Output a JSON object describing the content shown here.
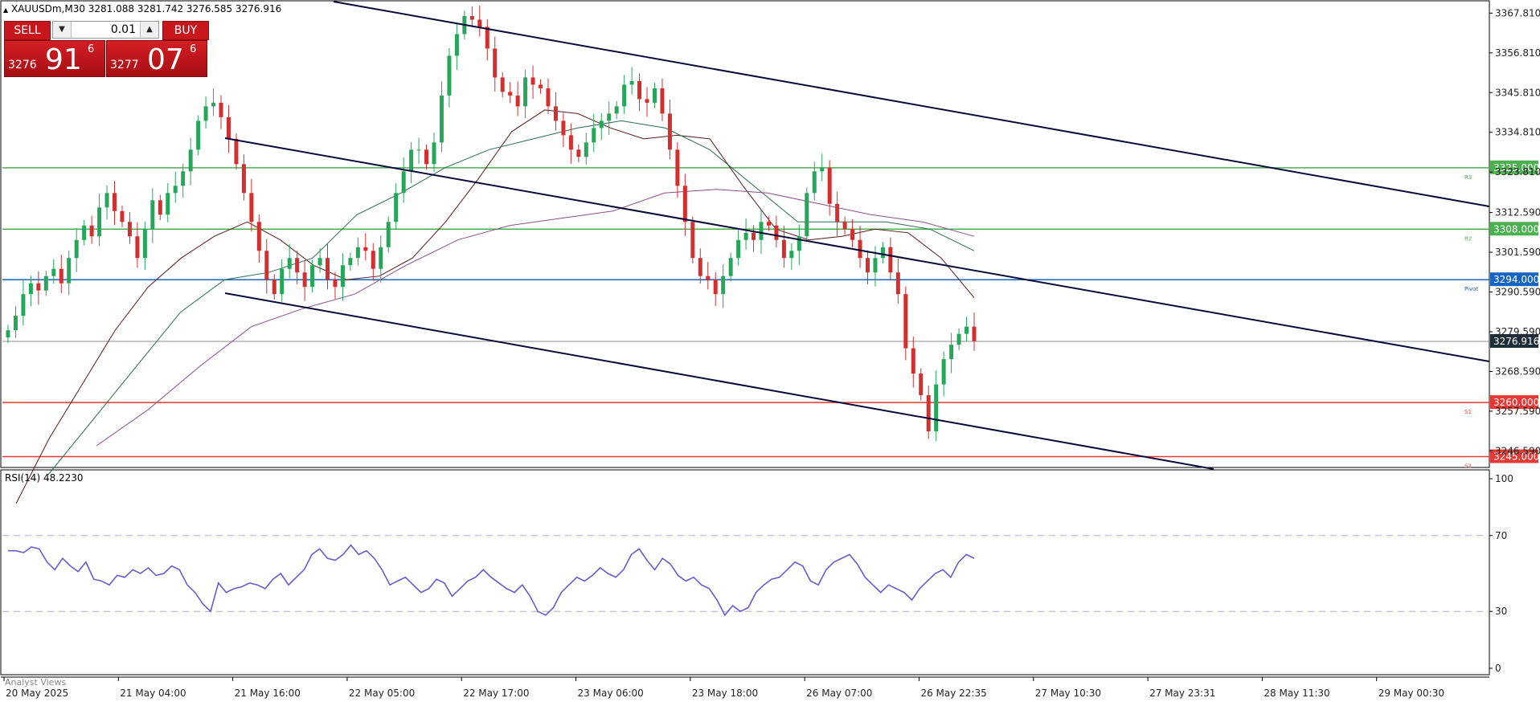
{
  "header": {
    "symbol_text": "XAUUSDm,M30  3281.088 3281.742 3276.585 3276.916"
  },
  "trade_panel": {
    "sell_label": "SELL",
    "buy_label": "BUY",
    "lot_value": "0.01",
    "bid_small": "3276",
    "bid_big": "91",
    "bid_sup": "6",
    "ask_small": "3277",
    "ask_big": "07",
    "ask_sup": "6"
  },
  "rsi_panel": {
    "label": "RSI(14) 48.2230"
  },
  "footer": {
    "analyst_label": "Analyst Views"
  },
  "colors": {
    "bull": "#26a65b",
    "bear": "#d32f2f",
    "channel": "#0a0a3c",
    "resistance": "#4caf50",
    "pivot": "#1565c0",
    "support": "#e53935",
    "rsi": "#6a5acd"
  },
  "chart_data": {
    "type": "candlestick",
    "symbol": "XAUUSDm",
    "timeframe": "M30",
    "ohlc_last": {
      "open": 3281.088,
      "high": 3281.742,
      "low": 3276.585,
      "close": 3276.916
    },
    "y_range": [
      3242,
      3371
    ],
    "y_ticks": [
      "3367.810",
      "3356.810",
      "3345.810",
      "3334.810",
      "3323.810",
      "3312.590",
      "3301.590",
      "3290.590",
      "3279.590",
      "3268.590",
      "3257.590",
      "3246.590"
    ],
    "x_ticks": [
      "20 May 2025",
      "21 May 04:00",
      "21 May 16:00",
      "22 May 05:00",
      "22 May 17:00",
      "23 May 06:00",
      "23 May 18:00",
      "26 May 07:00",
      "26 May 22:35",
      "27 May 10:30",
      "27 May 23:31",
      "28 May 11:30",
      "29 May 00:30"
    ],
    "levels": [
      {
        "name": "R3",
        "value": 3325.0,
        "label": "3325.000",
        "color": "#4caf50"
      },
      {
        "name": "R2",
        "value": 3308.0,
        "label": "3308.000",
        "color": "#4caf50"
      },
      {
        "name": "Pivot",
        "value": 3294.0,
        "label": "3294.000",
        "color": "#1565c0"
      },
      {
        "name": "S1",
        "value": 3260.0,
        "label": "3260.000",
        "color": "#e53935"
      },
      {
        "name": "S2",
        "value": 3245.0,
        "label": "3245.000",
        "color": "#e53935"
      }
    ],
    "current_price": {
      "value": 3276.916,
      "label": "3276.916"
    },
    "close_series": [
      3280,
      3284,
      3290,
      3293,
      3291,
      3295,
      3297,
      3293,
      3300,
      3305,
      3309,
      3306,
      3314,
      3318,
      3313,
      3310,
      3306,
      3300,
      3308,
      3316,
      3312,
      3318,
      3320,
      3324,
      3330,
      3338,
      3342,
      3343,
      3339,
      3333,
      3326,
      3318,
      3310,
      3302,
      3294,
      3290,
      3297,
      3300,
      3296,
      3292,
      3298,
      3300,
      3294,
      3292,
      3298,
      3300,
      3303,
      3302,
      3297,
      3303,
      3310,
      3318,
      3324,
      3330,
      3330,
      3326,
      3332,
      3345,
      3356,
      3362,
      3367,
      3366,
      3364,
      3358,
      3350,
      3346,
      3345,
      3342,
      3350,
      3348,
      3347,
      3342,
      3338,
      3334,
      3330,
      3328,
      3332,
      3336,
      3338,
      3340,
      3342,
      3348,
      3349,
      3344,
      3343,
      3347,
      3340,
      3330,
      3320,
      3310,
      3300,
      3295,
      3294,
      3290,
      3295,
      3300,
      3305,
      3307,
      3305,
      3310,
      3309,
      3305,
      3300,
      3302,
      3306,
      3318,
      3324,
      3325,
      3315,
      3310,
      3308,
      3305,
      3300,
      3296,
      3300,
      3303,
      3296,
      3290,
      3275,
      3268,
      3262,
      3252,
      3265,
      3272,
      3276,
      3279,
      3281,
      3277
    ],
    "moving_averages": [
      {
        "color": "#5a1a1a",
        "values": [
          3232,
          3250,
          3265,
          3280,
          3292,
          3300,
          3306,
          3310,
          3305,
          3298,
          3294,
          3295,
          3300,
          3310,
          3322,
          3335,
          3341,
          3340,
          3336,
          3333,
          3334,
          3333,
          3320,
          3308,
          3305,
          3306,
          3308,
          3307,
          3300,
          3289
        ]
      },
      {
        "color": "#2d6b4f",
        "values": [
          3240,
          3255,
          3270,
          3285,
          3294,
          3296,
          3300,
          3312,
          3318,
          3325,
          3330,
          3333,
          3336,
          3338,
          3336,
          3330,
          3320,
          3310,
          3310,
          3310,
          3308,
          3302
        ]
      },
      {
        "color": "#8a4f8a",
        "values": [
          3248,
          3258,
          3270,
          3281,
          3286,
          3290,
          3298,
          3305,
          3309,
          3311,
          3313,
          3318,
          3319,
          3318,
          3315,
          3312,
          3310,
          3306
        ]
      }
    ],
    "rsi": {
      "name": "RSI(14)",
      "last_value": 48.223,
      "ylim": [
        0,
        100
      ],
      "levels": [
        70,
        30
      ],
      "ticks": [
        "100",
        "70",
        "30",
        "0"
      ],
      "values": [
        62,
        62,
        61,
        64,
        63,
        56,
        52,
        58,
        54,
        51,
        56,
        47,
        46,
        44,
        49,
        48,
        52,
        50,
        53,
        49,
        50,
        54,
        52,
        44,
        40,
        34,
        30,
        45,
        40,
        42,
        43,
        45,
        44,
        42,
        47,
        50,
        44,
        48,
        52,
        60,
        63,
        58,
        57,
        60,
        65,
        60,
        62,
        58,
        52,
        44,
        46,
        48,
        44,
        40,
        42,
        47,
        45,
        38,
        42,
        46,
        48,
        52,
        48,
        45,
        42,
        40,
        44,
        38,
        30,
        28,
        32,
        40,
        44,
        48,
        46,
        49,
        53,
        50,
        48,
        52,
        60,
        63,
        57,
        52,
        58,
        55,
        49,
        46,
        48,
        44,
        42,
        36,
        28,
        33,
        30,
        32,
        40,
        44,
        47,
        48,
        52,
        56,
        54,
        46,
        44,
        52,
        56,
        58,
        60,
        55,
        48,
        44,
        40,
        44,
        42,
        40,
        36,
        42,
        46,
        50,
        52,
        48,
        56,
        60,
        58
      ]
    }
  }
}
